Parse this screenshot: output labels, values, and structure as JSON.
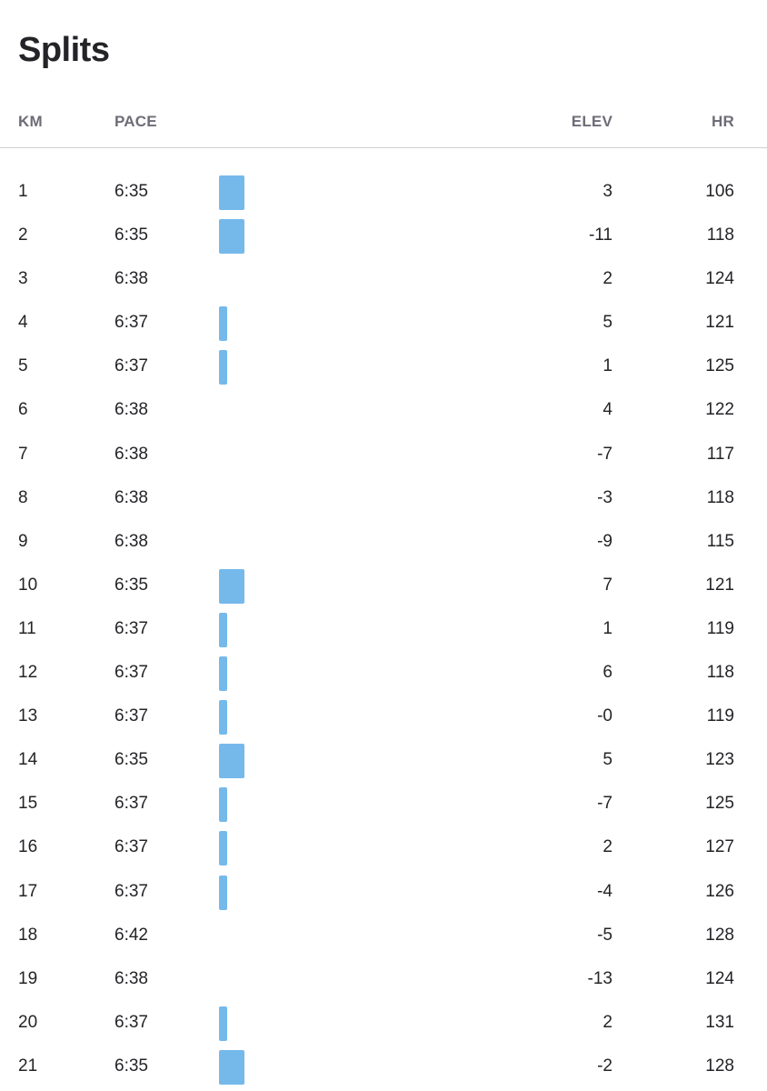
{
  "title": "Splits",
  "columns": {
    "km": "KM",
    "pace": "PACE",
    "elev": "ELEV",
    "hr": "HR"
  },
  "colors": {
    "bar": "#75b9eb",
    "text": "#242428",
    "header": "#6d6d78"
  },
  "pace_scale_seconds": {
    "min": 360,
    "max": 398
  },
  "splits": [
    {
      "km": "1",
      "pace": "6:35",
      "elev": "3",
      "hr": "106"
    },
    {
      "km": "2",
      "pace": "6:35",
      "elev": "-11",
      "hr": "118"
    },
    {
      "km": "3",
      "pace": "6:38",
      "elev": "2",
      "hr": "124"
    },
    {
      "km": "4",
      "pace": "6:37",
      "elev": "5",
      "hr": "121"
    },
    {
      "km": "5",
      "pace": "6:37",
      "elev": "1",
      "hr": "125"
    },
    {
      "km": "6",
      "pace": "6:38",
      "elev": "4",
      "hr": "122"
    },
    {
      "km": "7",
      "pace": "6:38",
      "elev": "-7",
      "hr": "117"
    },
    {
      "km": "8",
      "pace": "6:38",
      "elev": "-3",
      "hr": "118"
    },
    {
      "km": "9",
      "pace": "6:38",
      "elev": "-9",
      "hr": "115"
    },
    {
      "km": "10",
      "pace": "6:35",
      "elev": "7",
      "hr": "121"
    },
    {
      "km": "11",
      "pace": "6:37",
      "elev": "1",
      "hr": "119"
    },
    {
      "km": "12",
      "pace": "6:37",
      "elev": "6",
      "hr": "118"
    },
    {
      "km": "13",
      "pace": "6:37",
      "elev": "-0",
      "hr": "119"
    },
    {
      "km": "14",
      "pace": "6:35",
      "elev": "5",
      "hr": "123"
    },
    {
      "km": "15",
      "pace": "6:37",
      "elev": "-7",
      "hr": "125"
    },
    {
      "km": "16",
      "pace": "6:37",
      "elev": "2",
      "hr": "127"
    },
    {
      "km": "17",
      "pace": "6:37",
      "elev": "-4",
      "hr": "126"
    },
    {
      "km": "18",
      "pace": "6:42",
      "elev": "-5",
      "hr": "128"
    },
    {
      "km": "19",
      "pace": "6:38",
      "elev": "-13",
      "hr": "124"
    },
    {
      "km": "20",
      "pace": "6:37",
      "elev": "2",
      "hr": "131"
    },
    {
      "km": "21",
      "pace": "6:35",
      "elev": "-2",
      "hr": "128"
    }
  ]
}
